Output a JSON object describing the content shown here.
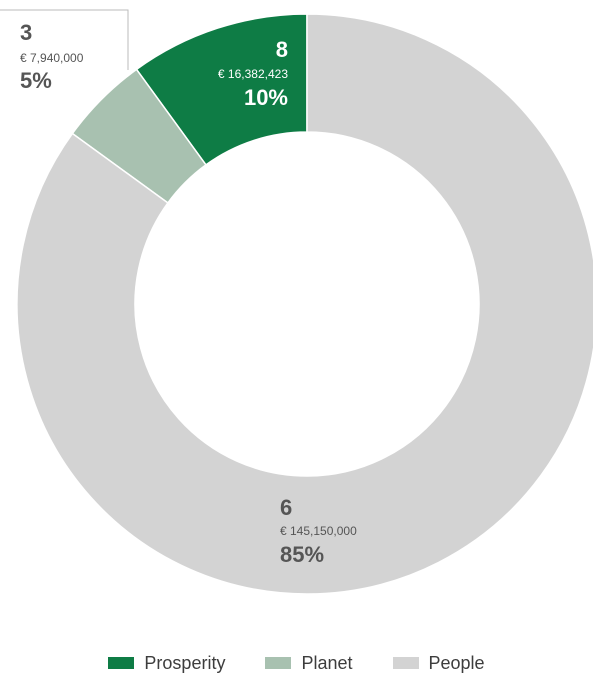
{
  "chart_data": {
    "type": "pie",
    "variant": "donut",
    "slices": [
      {
        "name": "Prosperity",
        "count": "8",
        "amount": "€ 16,382,423",
        "percent_label": "10%",
        "value": 10,
        "color": "#0e7c45",
        "label_color": "#ffffff"
      },
      {
        "name": "Planet",
        "count": "3",
        "amount": "€ 7,940,000",
        "percent_label": "5%",
        "value": 5,
        "color": "#a8c1b0",
        "label_color": "#555555"
      },
      {
        "name": "People",
        "count": "6",
        "amount": "€ 145,150,000",
        "percent_label": "85%",
        "value": 85,
        "color": "#d3d3d3",
        "label_color": "#555555"
      }
    ],
    "start": "12 o'clock, clockwise from Prosperity counter-clockwise",
    "legend_position": "bottom"
  }
}
